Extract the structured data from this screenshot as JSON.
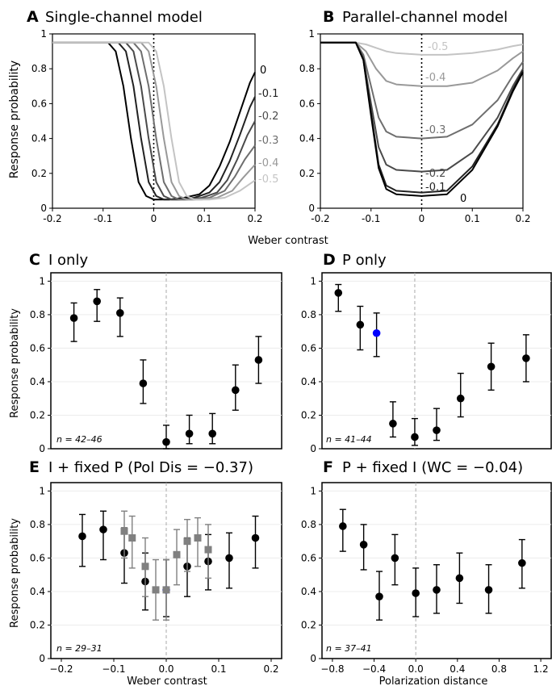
{
  "shared": {
    "ylabel": "Response probability",
    "top_xlabel": "Weber contrast"
  },
  "chart_data": [
    {
      "id": "A",
      "panel_letter": "A",
      "title": "Single-channel model",
      "type": "line",
      "xlim": [
        -0.2,
        0.2
      ],
      "ylim": [
        0,
        1
      ],
      "xticks": [
        "-0.2",
        "-0.1",
        "0",
        "0.1",
        "0.2"
      ],
      "yticks": [
        "0",
        "0.2",
        "0.4",
        "0.6",
        "0.8",
        "1"
      ],
      "reference_line_x": 0,
      "series": [
        {
          "name": "0",
          "color": "#000000",
          "x": [
            -0.2,
            -0.09,
            -0.075,
            -0.06,
            -0.045,
            -0.03,
            -0.015,
            0.0,
            0.03,
            0.06,
            0.09,
            0.11,
            0.13,
            0.15,
            0.17,
            0.19,
            0.2
          ],
          "y": [
            0.95,
            0.95,
            0.9,
            0.7,
            0.4,
            0.15,
            0.07,
            0.05,
            0.05,
            0.06,
            0.08,
            0.13,
            0.24,
            0.38,
            0.55,
            0.72,
            0.78
          ]
        },
        {
          "name": "-0.1",
          "color": "#222222",
          "x": [
            -0.2,
            -0.07,
            -0.055,
            -0.04,
            -0.025,
            -0.01,
            0.005,
            0.02,
            0.05,
            0.08,
            0.11,
            0.13,
            0.15,
            0.17,
            0.19,
            0.2
          ],
          "y": [
            0.95,
            0.95,
            0.9,
            0.7,
            0.4,
            0.15,
            0.07,
            0.05,
            0.05,
            0.06,
            0.09,
            0.15,
            0.27,
            0.42,
            0.58,
            0.64
          ]
        },
        {
          "name": "-0.2",
          "color": "#4a4a4a",
          "x": [
            -0.2,
            -0.055,
            -0.04,
            -0.025,
            -0.01,
            0.005,
            0.02,
            0.035,
            0.065,
            0.095,
            0.125,
            0.145,
            0.165,
            0.185,
            0.2
          ],
          "y": [
            0.95,
            0.95,
            0.9,
            0.7,
            0.4,
            0.15,
            0.07,
            0.05,
            0.05,
            0.06,
            0.09,
            0.16,
            0.28,
            0.42,
            0.5
          ]
        },
        {
          "name": "-0.3",
          "color": "#6e6e6e",
          "x": [
            -0.2,
            -0.04,
            -0.025,
            -0.01,
            0.005,
            0.02,
            0.035,
            0.05,
            0.08,
            0.11,
            0.14,
            0.16,
            0.18,
            0.2
          ],
          "y": [
            0.95,
            0.95,
            0.9,
            0.7,
            0.4,
            0.15,
            0.07,
            0.05,
            0.05,
            0.06,
            0.1,
            0.18,
            0.28,
            0.36
          ]
        },
        {
          "name": "-0.4",
          "color": "#999999",
          "x": [
            -0.2,
            -0.025,
            -0.01,
            0.005,
            0.02,
            0.035,
            0.05,
            0.065,
            0.095,
            0.125,
            0.155,
            0.175,
            0.2
          ],
          "y": [
            0.95,
            0.95,
            0.9,
            0.7,
            0.4,
            0.15,
            0.07,
            0.05,
            0.05,
            0.06,
            0.1,
            0.17,
            0.25
          ]
        },
        {
          "name": "-0.5",
          "color": "#c4c4c4",
          "x": [
            -0.2,
            -0.01,
            0.005,
            0.02,
            0.035,
            0.05,
            0.065,
            0.08,
            0.11,
            0.14,
            0.17,
            0.2
          ],
          "y": [
            0.95,
            0.95,
            0.9,
            0.7,
            0.4,
            0.15,
            0.07,
            0.05,
            0.05,
            0.06,
            0.1,
            0.16
          ]
        }
      ]
    },
    {
      "id": "B",
      "panel_letter": "B",
      "title": "Parallel-channel model",
      "type": "line",
      "xlim": [
        -0.2,
        0.2
      ],
      "ylim": [
        0,
        1
      ],
      "xticks": [
        "-0.2",
        "-0.1",
        "0",
        "0.1",
        "0.2"
      ],
      "yticks": [
        "0",
        "0.2",
        "0.4",
        "0.6",
        "0.8",
        "1"
      ],
      "reference_line_x": 0,
      "series": [
        {
          "name": "-0.5",
          "color": "#c4c4c4",
          "x": [
            -0.2,
            -0.13,
            -0.11,
            -0.09,
            -0.07,
            -0.05,
            0.0,
            0.05,
            0.1,
            0.15,
            0.18,
            0.2
          ],
          "y": [
            0.95,
            0.95,
            0.94,
            0.92,
            0.9,
            0.89,
            0.88,
            0.88,
            0.89,
            0.91,
            0.93,
            0.94
          ]
        },
        {
          "name": "-0.4",
          "color": "#999999",
          "x": [
            -0.2,
            -0.13,
            -0.11,
            -0.09,
            -0.07,
            -0.05,
            0.0,
            0.05,
            0.1,
            0.15,
            0.18,
            0.2
          ],
          "y": [
            0.95,
            0.95,
            0.9,
            0.8,
            0.73,
            0.71,
            0.7,
            0.7,
            0.72,
            0.79,
            0.86,
            0.9
          ]
        },
        {
          "name": "-0.3",
          "color": "#6e6e6e",
          "x": [
            -0.2,
            -0.13,
            -0.115,
            -0.1,
            -0.085,
            -0.07,
            -0.05,
            0.0,
            0.05,
            0.1,
            0.15,
            0.18,
            0.2
          ],
          "y": [
            0.95,
            0.95,
            0.88,
            0.7,
            0.52,
            0.44,
            0.41,
            0.4,
            0.41,
            0.48,
            0.62,
            0.76,
            0.84
          ]
        },
        {
          "name": "-0.2",
          "color": "#4a4a4a",
          "x": [
            -0.2,
            -0.13,
            -0.115,
            -0.1,
            -0.085,
            -0.07,
            -0.05,
            0.0,
            0.05,
            0.1,
            0.15,
            0.18,
            0.2
          ],
          "y": [
            0.95,
            0.95,
            0.86,
            0.6,
            0.35,
            0.25,
            0.22,
            0.21,
            0.22,
            0.32,
            0.52,
            0.7,
            0.8
          ]
        },
        {
          "name": "-0.1",
          "color": "#222222",
          "x": [
            -0.2,
            -0.13,
            -0.115,
            -0.1,
            -0.085,
            -0.07,
            -0.05,
            0.0,
            0.05,
            0.1,
            0.15,
            0.18,
            0.2
          ],
          "y": [
            0.95,
            0.95,
            0.85,
            0.55,
            0.25,
            0.13,
            0.1,
            0.09,
            0.1,
            0.24,
            0.48,
            0.68,
            0.79
          ]
        },
        {
          "name": "0",
          "color": "#000000",
          "x": [
            -0.2,
            -0.13,
            -0.115,
            -0.1,
            -0.085,
            -0.07,
            -0.05,
            0.0,
            0.05,
            0.1,
            0.15,
            0.18,
            0.2
          ],
          "y": [
            0.95,
            0.95,
            0.85,
            0.53,
            0.23,
            0.11,
            0.08,
            0.07,
            0.08,
            0.22,
            0.47,
            0.67,
            0.78
          ]
        }
      ]
    },
    {
      "id": "C",
      "panel_letter": "C",
      "title": "I only",
      "type": "scatter",
      "xlim": [
        -0.2,
        0.2
      ],
      "ylim": [
        0,
        1.05
      ],
      "yticks": [
        "0",
        "0.2",
        "0.4",
        "0.6",
        "0.8",
        "1"
      ],
      "reference_line_x": 0,
      "annotation": "n = 42–46",
      "series": [
        {
          "color": "#000000",
          "marker": "circle",
          "x": [
            -0.16,
            -0.12,
            -0.08,
            -0.04,
            0.0,
            0.04,
            0.08,
            0.12,
            0.16
          ],
          "y": [
            0.78,
            0.88,
            0.81,
            0.39,
            0.04,
            0.09,
            0.09,
            0.35,
            0.53
          ],
          "err_low": [
            0.64,
            0.76,
            0.67,
            0.27,
            0.0,
            0.03,
            0.03,
            0.23,
            0.39
          ],
          "err_high": [
            0.87,
            0.95,
            0.9,
            0.53,
            0.14,
            0.2,
            0.21,
            0.5,
            0.67
          ]
        }
      ]
    },
    {
      "id": "D",
      "panel_letter": "D",
      "title": "P only",
      "type": "scatter",
      "xlim": [
        -0.85,
        1.25
      ],
      "ylim": [
        0,
        1.05
      ],
      "yticks": [
        "0",
        "0.2",
        "0.4",
        "0.6",
        "0.8",
        "1"
      ],
      "reference_line_x": 0,
      "annotation": "n = 41–44",
      "series": [
        {
          "color": "#000000",
          "marker": "circle",
          "x": [
            -0.7,
            -0.5,
            -0.35,
            -0.2,
            0.0,
            0.2,
            0.42,
            0.7,
            1.02
          ],
          "y": [
            0.93,
            0.74,
            0.69,
            0.15,
            0.07,
            0.11,
            0.3,
            0.49,
            0.54
          ],
          "err_low": [
            0.82,
            0.59,
            0.55,
            0.07,
            0.02,
            0.05,
            0.19,
            0.35,
            0.4
          ],
          "err_high": [
            0.98,
            0.85,
            0.81,
            0.28,
            0.18,
            0.24,
            0.45,
            0.63,
            0.68
          ],
          "highlight_index": 2,
          "highlight_color": "#0000ff"
        }
      ]
    },
    {
      "id": "E",
      "panel_letter": "E",
      "title": "I + fixed P (Pol Dis = −0.37)",
      "type": "scatter",
      "xlim": [
        -0.22,
        0.22
      ],
      "ylim": [
        0,
        1.05
      ],
      "xticks": [
        "−0.2",
        "−0.1",
        "0.0",
        "0.1",
        "0.2"
      ],
      "yticks": [
        "0",
        "0.2",
        "0.4",
        "0.6",
        "0.8",
        "1"
      ],
      "xlabel": "Weber contrast",
      "reference_line_x": 0,
      "annotation": "n = 29–31",
      "series": [
        {
          "color": "#000000",
          "marker": "circle",
          "x": [
            -0.16,
            -0.12,
            -0.08,
            -0.04,
            0.0,
            0.04,
            0.08,
            0.12,
            0.17
          ],
          "y": [
            0.73,
            0.77,
            0.63,
            0.46,
            0.41,
            0.55,
            0.58,
            0.6,
            0.72
          ],
          "err_low": [
            0.55,
            0.59,
            0.45,
            0.29,
            0.25,
            0.37,
            0.41,
            0.42,
            0.54
          ],
          "err_high": [
            0.86,
            0.88,
            0.78,
            0.63,
            0.59,
            0.72,
            0.74,
            0.75,
            0.85
          ],
          "highlight_index": 4,
          "highlight_color": "#0000ff"
        },
        {
          "color": "#808080",
          "marker": "square",
          "x": [
            -0.08,
            -0.065,
            -0.04,
            -0.02,
            0.0,
            0.02,
            0.04,
            0.06,
            0.08
          ],
          "y": [
            0.76,
            0.72,
            0.55,
            0.41,
            0.41,
            0.62,
            0.7,
            0.72,
            0.65
          ],
          "err_low": [
            0.6,
            0.54,
            0.37,
            0.23,
            0.23,
            0.44,
            0.52,
            0.55,
            0.48
          ],
          "err_high": [
            0.88,
            0.85,
            0.72,
            0.59,
            0.59,
            0.77,
            0.83,
            0.84,
            0.8
          ]
        }
      ]
    },
    {
      "id": "F",
      "panel_letter": "F",
      "title": "P + fixed I (WC = −0.04)",
      "type": "scatter",
      "xlim": [
        -0.9,
        1.3
      ],
      "ylim": [
        0,
        1.05
      ],
      "xticks": [
        "−0.8",
        "−0.4",
        "0.0",
        "0.4",
        "0.8",
        "1.2"
      ],
      "yticks": [
        "0",
        "0.2",
        "0.4",
        "0.6",
        "0.8",
        "1"
      ],
      "xlabel": "Polarization distance",
      "reference_line_x": 0,
      "annotation": "n = 37–41",
      "series": [
        {
          "color": "#000000",
          "marker": "circle",
          "x": [
            -0.7,
            -0.5,
            -0.35,
            -0.2,
            0.0,
            0.2,
            0.42,
            0.7,
            1.02
          ],
          "y": [
            0.79,
            0.68,
            0.37,
            0.6,
            0.39,
            0.41,
            0.48,
            0.41,
            0.57
          ],
          "err_low": [
            0.64,
            0.53,
            0.23,
            0.44,
            0.25,
            0.27,
            0.33,
            0.27,
            0.42
          ],
          "err_high": [
            0.89,
            0.8,
            0.52,
            0.74,
            0.54,
            0.56,
            0.63,
            0.56,
            0.71
          ]
        }
      ]
    }
  ]
}
